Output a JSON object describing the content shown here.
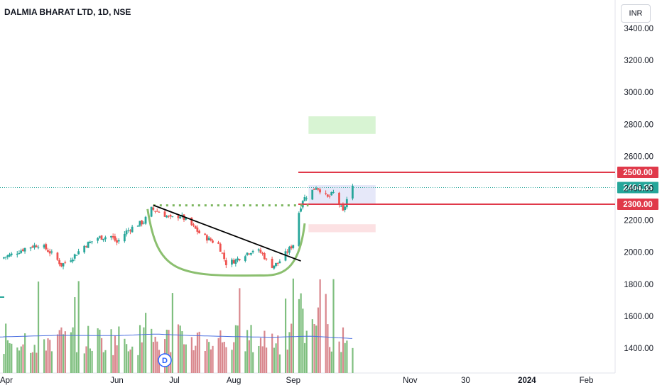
{
  "header": {
    "title": "DALMIA BHARAT LTD, 1D, NSE",
    "currency": "INR"
  },
  "chart_data": {
    "type": "candlestick",
    "symbol": "DALMIA BHARAT LTD",
    "interval": "1D",
    "exchange": "NSE",
    "ylim": [
      1280,
      3480
    ],
    "y_ticks": [
      1400,
      1600,
      1800,
      2000,
      2200,
      2400,
      2600,
      2800,
      3000,
      3200,
      3400
    ],
    "y_tick_labels": [
      "1400.00",
      "1600.00",
      "1800.00",
      "2000.00",
      "2200.00",
      "2400.00",
      "2600.00",
      "2800.00",
      "3000.00",
      "3200.00",
      "3400.00"
    ],
    "x_labels": [
      "Apr",
      "Jun",
      "Jul",
      "Aug",
      "Sep",
      "Nov",
      "30",
      "2024",
      "Feb"
    ],
    "x_label_dates": [
      "2023-04-01",
      "2023-06-01",
      "2023-07-01",
      "2023-08-01",
      "2023-09-01",
      "2023-11-01",
      "2023-11-30",
      "2024-01-01",
      "2024-02-01"
    ],
    "x_range": [
      "2023-04-01",
      "2024-02-16"
    ],
    "last_price": 2404.35,
    "last_price_label": "2404.35",
    "levels": [
      {
        "value": 2500,
        "label": "2500.00",
        "color": "#e0394a"
      },
      {
        "value": 2300,
        "label": "2300.00",
        "color": "#e0394a"
      }
    ],
    "breakout_line": 2293,
    "trendline": {
      "from": {
        "date": "2023-06-20",
        "value": 2294
      },
      "to": {
        "date": "2023-09-05",
        "value": 1945
      }
    },
    "cup_pattern": {
      "start": {
        "date": "2023-06-17",
        "value": 2270
      },
      "bottom": {
        "date": "2023-08-15",
        "value": 1855
      },
      "end": {
        "date": "2023-09-07",
        "value": 2180
      }
    },
    "target_zone": {
      "from": "2023-09-09",
      "to": "2023-10-14",
      "low": 2740,
      "high": 2850
    },
    "stop_zone": {
      "from": "2023-09-09",
      "to": "2023-10-14",
      "low": 2125,
      "high": 2175
    },
    "dividend_marker": "D",
    "close_points": [
      [
        "2023-04-01",
        1960
      ],
      [
        "2023-04-08",
        1990
      ],
      [
        "2023-04-15",
        2030
      ],
      [
        "2023-04-22",
        2050
      ],
      [
        "2023-04-29",
        1980
      ],
      [
        "2023-05-03",
        1920
      ],
      [
        "2023-05-09",
        1970
      ],
      [
        "2023-05-15",
        2040
      ],
      [
        "2023-05-22",
        2090
      ],
      [
        "2023-05-29",
        2100
      ],
      [
        "2023-06-01",
        2060
      ],
      [
        "2023-06-06",
        2130
      ],
      [
        "2023-06-11",
        2170
      ],
      [
        "2023-06-15",
        2190
      ],
      [
        "2023-06-19",
        2270
      ],
      [
        "2023-06-24",
        2250
      ],
      [
        "2023-06-29",
        2210
      ],
      [
        "2023-07-04",
        2230
      ],
      [
        "2023-07-09",
        2180
      ],
      [
        "2023-07-14",
        2120
      ],
      [
        "2023-07-19",
        2080
      ],
      [
        "2023-07-24",
        2050
      ],
      [
        "2023-07-28",
        1930
      ],
      [
        "2023-08-02",
        1950
      ],
      [
        "2023-08-07",
        1990
      ],
      [
        "2023-08-12",
        2020
      ],
      [
        "2023-08-16",
        1990
      ],
      [
        "2023-08-20",
        1910
      ],
      [
        "2023-08-24",
        1930
      ],
      [
        "2023-08-28",
        1990
      ],
      [
        "2023-09-01",
        2050
      ],
      [
        "2023-09-04",
        2250
      ],
      [
        "2023-09-06",
        2330
      ],
      [
        "2023-09-09",
        2360
      ],
      [
        "2023-09-13",
        2410
      ],
      [
        "2023-09-16",
        2380
      ],
      [
        "2023-09-19",
        2340
      ],
      [
        "2023-09-22",
        2370
      ],
      [
        "2023-09-25",
        2300
      ],
      [
        "2023-09-27",
        2250
      ],
      [
        "2023-09-30",
        2370
      ],
      [
        "2023-10-02",
        2404
      ]
    ],
    "ma_points": [
      [
        "2023-04-01",
        1470
      ],
      [
        "2023-05-01",
        1480
      ],
      [
        "2023-06-01",
        1478
      ],
      [
        "2023-06-21",
        1488
      ],
      [
        "2023-07-11",
        1478
      ],
      [
        "2023-08-01",
        1472
      ],
      [
        "2023-08-21",
        1468
      ],
      [
        "2023-09-10",
        1475
      ],
      [
        "2023-10-02",
        1460
      ]
    ],
    "colors": {
      "up": "#26a69a",
      "down": "#ef5350",
      "vol_up": "#7fbf7f",
      "vol_down": "#d9878d",
      "ma": "#4a6ee0"
    }
  }
}
